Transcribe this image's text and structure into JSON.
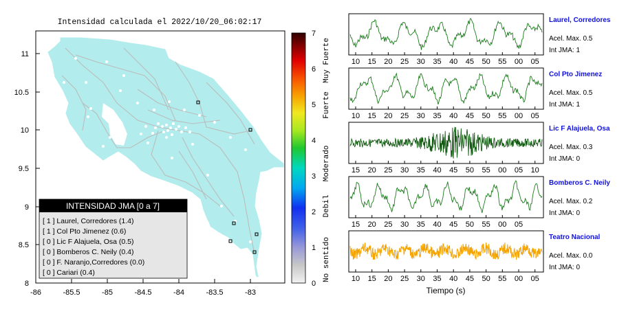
{
  "map": {
    "title": "Intensidad calculada el 2022/10/20_06:02:17",
    "x_ticks": [
      "-86",
      "-85.5",
      "-85",
      "-84.5",
      "-84",
      "-83.5",
      "-83"
    ],
    "y_ticks": [
      "11",
      "10.5",
      "10",
      "9.5",
      "9",
      "8.5",
      "8"
    ],
    "land_color": "#b2ecec",
    "legend": {
      "title": "INTENSIDAD JMA [0 a 7]",
      "entries": [
        "[ 1 ]  Laurel, Corredores (1.4)",
        "[ 1 ]  Col Pto Jimenez (0.6)",
        "[ 0 ]  Lic F Alajuela, Osa (0.5)",
        "[ 0 ]  Bomberos C. Neily (0.4)",
        "[ 0 ]  F. Naranjo,Corredores (0.0)",
        "[ 0 ]  Cariari (0.4)"
      ]
    }
  },
  "colorbar": {
    "ticks": [
      "7",
      "6",
      "5",
      "4",
      "3",
      "2",
      "1",
      "0"
    ],
    "categories": [
      "Muy Fuerte",
      "Fuerte",
      "Moderado",
      "Debil",
      "No sentido"
    ]
  },
  "waveforms": {
    "x_label": "Tiempo (s)",
    "panels": [
      {
        "name": "Laurel, Corredores",
        "acel": "Acel. Max. 0.5",
        "int": "Int JMA: 1",
        "color": "#1a7a1a",
        "ticks": [
          "10",
          "15",
          "20",
          "25",
          "30",
          "35",
          "40",
          "45",
          "50",
          "55",
          "00",
          "05"
        ]
      },
      {
        "name": "Col Pto Jimenez",
        "acel": "Acel. Max. 0.5",
        "int": "Int JMA: 1",
        "color": "#1a7a1a",
        "ticks": [
          "10",
          "15",
          "20",
          "25",
          "30",
          "35",
          "40",
          "45",
          "50",
          "55",
          "00",
          "05"
        ]
      },
      {
        "name": "Lic F Alajuela, Osa",
        "acel": "Acel. Max. 0.3",
        "int": "Int JMA: 0",
        "color": "#0e5a0e",
        "ticks": [
          "15",
          "20",
          "25",
          "30",
          "35",
          "40",
          "45",
          "50",
          "55",
          "00",
          "05",
          "10"
        ]
      },
      {
        "name": "Bomberos C. Neily",
        "acel": "Acel. Max. 0.2",
        "int": "Int JMA: 0",
        "color": "#1a7a1a",
        "ticks": [
          "15",
          "20",
          "25",
          "30",
          "35",
          "40",
          "45",
          "50",
          "55",
          "00",
          "05"
        ]
      },
      {
        "name": "Teatro Nacional",
        "acel": "Acel. Max. 0.0",
        "int": "Int JMA: 0",
        "color": "#f5a300",
        "ticks": [
          "10",
          "15",
          "20",
          "25",
          "30",
          "35",
          "40",
          "45",
          "50",
          "55",
          "00",
          "05"
        ]
      }
    ]
  }
}
